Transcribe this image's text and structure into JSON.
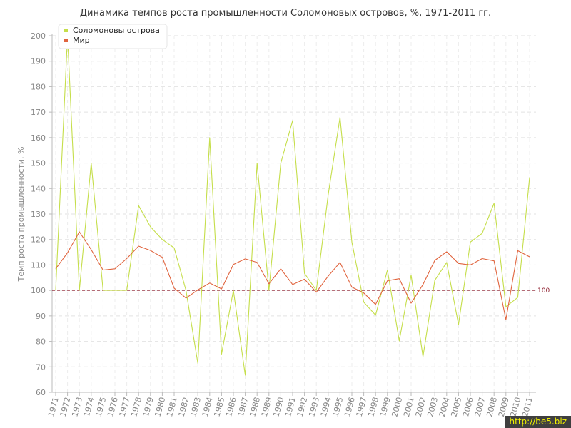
{
  "chart_data": {
    "type": "line",
    "title": "Динамика темпов роста промышленности Соломоновых островов, %, 1971-2011 гг.",
    "ylabel": "Темп роста промышленности, %",
    "xlabel": "",
    "ylim": [
      60,
      200
    ],
    "yticks": [
      60,
      70,
      80,
      90,
      100,
      110,
      120,
      130,
      140,
      150,
      160,
      170,
      180,
      190,
      200
    ],
    "grid": true,
    "legend_position": "top-left",
    "reference_line": {
      "value": 100,
      "label": "100",
      "color": "#8b1a2a"
    },
    "x": [
      1971,
      1972,
      1973,
      1974,
      1975,
      1976,
      1977,
      1978,
      1979,
      1980,
      1981,
      1982,
      1983,
      1984,
      1985,
      1986,
      1987,
      1988,
      1989,
      1990,
      1991,
      1992,
      1993,
      1994,
      1995,
      1996,
      1997,
      1998,
      1999,
      2000,
      2001,
      2002,
      2003,
      2004,
      2005,
      2006,
      2007,
      2008,
      2009,
      2010,
      2011
    ],
    "series": [
      {
        "name": "Соломоновы острова",
        "color": "#c5de4a",
        "values": [
          100,
          200,
          100,
          150,
          100,
          100,
          100,
          133.3,
          125,
          120,
          116.7,
          100,
          71.4,
          160,
          75,
          100,
          66.7,
          150,
          100,
          150,
          166.7,
          106.7,
          100,
          137.5,
          168,
          119,
          95.4,
          90.3,
          108,
          80.2,
          106,
          74,
          104,
          111,
          86.6,
          119,
          122.4,
          134.2,
          93.6,
          97.2,
          144.4
        ]
      },
      {
        "name": "Мир",
        "color": "#e0643e",
        "values": [
          108.5,
          114.8,
          123,
          116,
          108,
          108.5,
          112.5,
          117.4,
          115.7,
          113,
          100.9,
          97,
          100.2,
          102.9,
          100.6,
          110.2,
          112.4,
          111,
          102.6,
          108.5,
          102.3,
          104.4,
          99.3,
          105.6,
          111,
          101.3,
          99,
          94.5,
          103.8,
          104.6,
          95,
          102.3,
          111.8,
          115.2,
          110.6,
          110,
          112.5,
          111.6,
          88.5,
          115.6,
          113.2
        ]
      }
    ]
  },
  "watermark": "http://be5.biz"
}
